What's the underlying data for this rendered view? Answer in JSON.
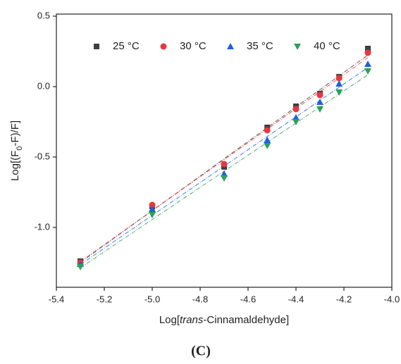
{
  "chart_data": {
    "type": "scatter",
    "caption": "(C)",
    "xlabel_parts": [
      "Log[",
      "trans",
      "-Cinnamaldehyde]"
    ],
    "ylabel_parts": [
      "Log[(F",
      "0",
      "-F)/F]"
    ],
    "x": [
      -5.3,
      -5.0,
      -4.7,
      -4.52,
      -4.4,
      -4.3,
      -4.22,
      -4.1
    ],
    "series": [
      {
        "name": "25 °C",
        "color": "#3f3f3f",
        "marker": "square",
        "values": [
          -1.24,
          -0.85,
          -0.57,
          -0.29,
          -0.14,
          -0.05,
          0.07,
          0.27
        ]
      },
      {
        "name": "30 °C",
        "color": "#e8383d",
        "marker": "circle",
        "values": [
          -1.25,
          -0.84,
          -0.55,
          -0.31,
          -0.16,
          -0.06,
          0.06,
          0.24
        ]
      },
      {
        "name": "35 °C",
        "color": "#1f5fe0",
        "marker": "triangle-up",
        "values": [
          -1.26,
          -0.87,
          -0.62,
          -0.38,
          -0.22,
          -0.11,
          0.02,
          0.16
        ]
      },
      {
        "name": "40 °C",
        "color": "#2ca05a",
        "marker": "triangle-down",
        "values": [
          -1.28,
          -0.91,
          -0.65,
          -0.42,
          -0.25,
          -0.16,
          -0.04,
          0.11
        ]
      }
    ],
    "xlim": [
      -5.4,
      -4.0
    ],
    "xticks": [
      -5.4,
      -5.2,
      {
        "value": -5,
        "label": "-5.0"
      },
      -4.8,
      -4.6,
      -4.4,
      -4.2,
      {
        "value": -4,
        "label": "-4.0"
      }
    ],
    "ylim": [
      -1.425,
      0.515
    ],
    "yticks": [
      {
        "value": -1,
        "label": "-1.0"
      },
      -0.5,
      {
        "value": 0,
        "label": "0.0"
      },
      0.5
    ],
    "fit_lines": true,
    "grid": false,
    "legend": "top-left"
  }
}
